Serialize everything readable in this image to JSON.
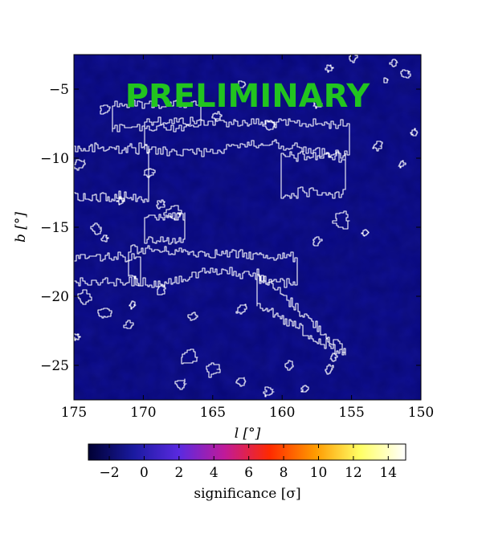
{
  "chart_data": {
    "type": "heatmap",
    "title": "",
    "xlabel": "l [°]",
    "ylabel": "b [°]",
    "xlim": [
      175,
      150
    ],
    "ylim": [
      -27.5,
      -2.5
    ],
    "xticks": [
      175,
      170,
      165,
      160,
      155,
      150
    ],
    "yticks": [
      -5,
      -10,
      -15,
      -20,
      -25
    ],
    "xtick_labels": [
      "175",
      "170",
      "165",
      "160",
      "155",
      "150"
    ],
    "ytick_labels": [
      "−5",
      "−10",
      "−15",
      "−20",
      "−25"
    ],
    "grid": false,
    "contour_color": "#ffffff",
    "colorbar": {
      "label": "significance [σ]",
      "range": [
        -3.2,
        15
      ],
      "ticks": [
        -2,
        0,
        2,
        4,
        6,
        8,
        10,
        12,
        14
      ],
      "tick_labels": [
        "−2",
        "0",
        "2",
        "4",
        "6",
        "8",
        "10",
        "12",
        "14"
      ],
      "colormap": "gnuplot2",
      "colormap_stops": [
        "#000033",
        "#1a1aa0",
        "#5a2ae0",
        "#c01a9a",
        "#ff2a00",
        "#ff9a00",
        "#ffff66",
        "#ffffff"
      ]
    },
    "significance_values": {
      "dominant_range": [
        -1,
        2
      ]
    },
    "watermark": {
      "text": "PRELIMINARY",
      "color": "#22c41f"
    }
  }
}
